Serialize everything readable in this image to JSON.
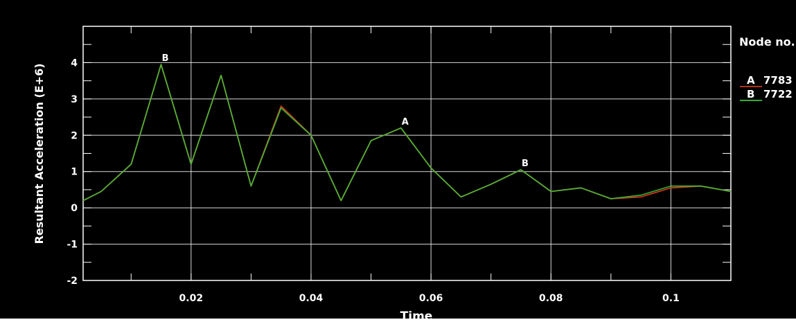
{
  "chart_data": {
    "type": "line",
    "title": "",
    "xlabel": "Time",
    "ylabel": "Resultant Acceleration (E+6)",
    "xlim": [
      0.002,
      0.11
    ],
    "ylim": [
      -2,
      5
    ],
    "x_ticks": [
      0.02,
      0.04,
      0.06,
      0.08,
      0.1
    ],
    "x_tick_labels": [
      "0.02",
      "0.04",
      "0.06",
      "0.08",
      "0.1"
    ],
    "y_ticks": [
      -2,
      -1,
      0,
      1,
      2,
      3,
      4
    ],
    "y_tick_labels": [
      "-2",
      "-1",
      "0",
      "1",
      "2",
      "3",
      "4"
    ],
    "grid": true,
    "legend_title": "Node no.",
    "legend_position": "right",
    "series": [
      {
        "name": "7783",
        "marker_letter": "A",
        "color": "#d03a1c",
        "x": [
          0.002,
          0.005,
          0.01,
          0.015,
          0.02,
          0.025,
          0.03,
          0.035,
          0.04,
          0.045,
          0.05,
          0.055,
          0.06,
          0.065,
          0.07,
          0.075,
          0.08,
          0.085,
          0.09,
          0.095,
          0.1,
          0.105,
          0.11
        ],
        "y": [
          0.2,
          0.45,
          1.2,
          3.95,
          1.2,
          3.65,
          0.6,
          2.8,
          2.0,
          0.2,
          1.85,
          2.2,
          1.1,
          0.3,
          0.65,
          1.05,
          0.45,
          0.55,
          0.25,
          0.3,
          0.55,
          0.6,
          0.45
        ]
      },
      {
        "name": "7722",
        "marker_letter": "B",
        "color": "#3cc43c",
        "x": [
          0.002,
          0.005,
          0.01,
          0.015,
          0.02,
          0.025,
          0.03,
          0.035,
          0.04,
          0.045,
          0.05,
          0.055,
          0.06,
          0.065,
          0.07,
          0.075,
          0.08,
          0.085,
          0.09,
          0.095,
          0.1,
          0.105,
          0.11
        ],
        "y": [
          0.2,
          0.45,
          1.2,
          3.95,
          1.2,
          3.65,
          0.6,
          2.75,
          2.0,
          0.2,
          1.85,
          2.2,
          1.1,
          0.3,
          0.65,
          1.05,
          0.45,
          0.55,
          0.25,
          0.35,
          0.6,
          0.6,
          0.45
        ]
      }
    ],
    "point_labels": [
      {
        "text": "B",
        "x": 0.015,
        "y": 3.95
      },
      {
        "text": "A",
        "x": 0.055,
        "y": 2.2
      },
      {
        "text": "B",
        "x": 0.075,
        "y": 1.05
      }
    ],
    "colors": {
      "background": "#000000",
      "grid": "#ffffff",
      "text": "#ffffff",
      "overlap": "#b5a53a"
    }
  }
}
